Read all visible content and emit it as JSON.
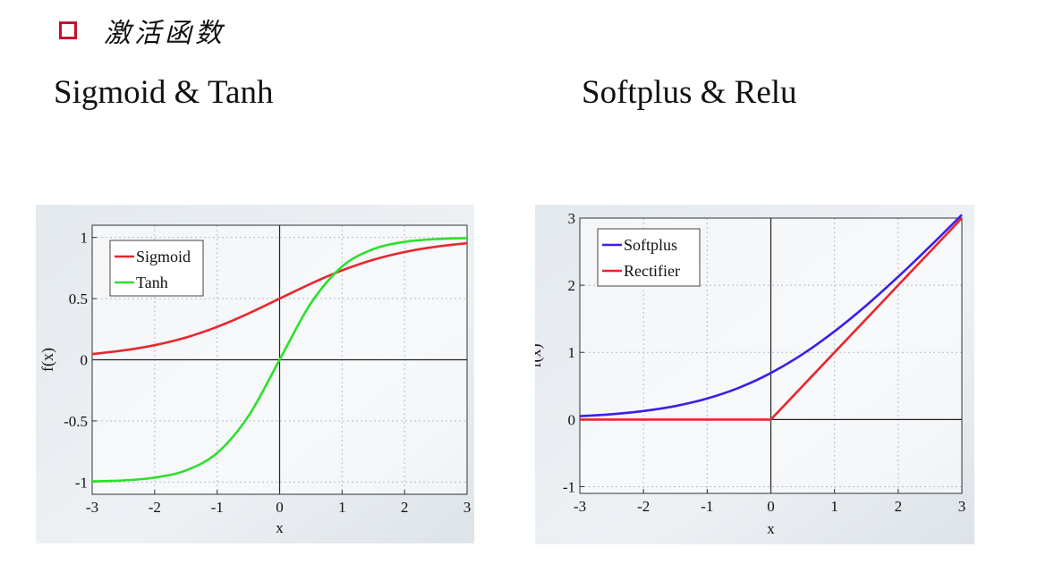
{
  "header": {
    "bullet_icon": "hollow-red-square-icon",
    "title": "激活函数"
  },
  "subtitles": {
    "left": "Sigmoid & Tanh",
    "right": "Softplus & Relu"
  },
  "colors": {
    "bullet": "#c8102e",
    "sigmoid": "#e8262d",
    "tanh": "#2be02b",
    "softplus": "#3b1ee8",
    "rectifier": "#e8262d"
  },
  "chart_data": [
    {
      "type": "line",
      "xlabel": "x",
      "ylabel": "f(x)",
      "xlim": [
        -3,
        3
      ],
      "ylim": [
        -1.1,
        1.1
      ],
      "x_ticks": [
        "-3",
        "-2",
        "-1",
        "0",
        "1",
        "2",
        "3"
      ],
      "y_ticks": [
        "1",
        "0.5",
        "0",
        "-0.5",
        "-1"
      ],
      "grid": true,
      "legend": "top-left",
      "x": [
        -3,
        -2.5,
        -2,
        -1.5,
        -1,
        -0.5,
        0,
        0.5,
        1,
        1.5,
        2,
        2.5,
        3
      ],
      "series": [
        {
          "name": "Sigmoid",
          "values": [
            0.047,
            0.076,
            0.119,
            0.182,
            0.269,
            0.378,
            0.5,
            0.622,
            0.731,
            0.818,
            0.881,
            0.924,
            0.953
          ]
        },
        {
          "name": "Tanh",
          "values": [
            -0.995,
            -0.987,
            -0.964,
            -0.905,
            -0.762,
            -0.462,
            0,
            0.462,
            0.762,
            0.905,
            0.964,
            0.987,
            0.995
          ]
        }
      ]
    },
    {
      "type": "line",
      "xlabel": "x",
      "ylabel": "f(x)",
      "xlim": [
        -3,
        3
      ],
      "ylim": [
        -1.1,
        3
      ],
      "x_ticks": [
        "-3",
        "-2",
        "-1",
        "0",
        "1",
        "2",
        "3"
      ],
      "y_ticks": [
        "3",
        "2",
        "1",
        "0",
        "-1"
      ],
      "grid": true,
      "legend": "top-left",
      "x": [
        -3,
        -2.5,
        -2,
        -1.5,
        -1,
        -0.5,
        0,
        0.5,
        1,
        1.5,
        2,
        2.5,
        3
      ],
      "series": [
        {
          "name": "Softplus",
          "values": [
            0.049,
            0.079,
            0.127,
            0.201,
            0.313,
            0.474,
            0.693,
            0.974,
            1.313,
            1.701,
            2.127,
            2.579,
            3.049
          ]
        },
        {
          "name": "Rectifier",
          "values": [
            0,
            0,
            0,
            0,
            0,
            0,
            0,
            0.5,
            1,
            1.5,
            2,
            2.5,
            3
          ]
        }
      ]
    }
  ]
}
